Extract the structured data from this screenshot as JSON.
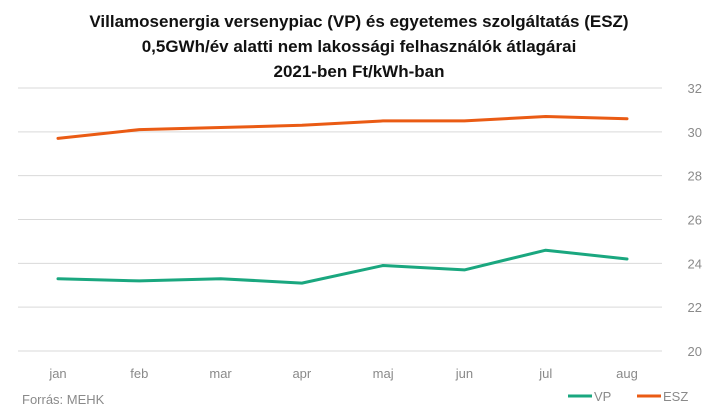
{
  "chart_data": {
    "type": "line",
    "title_lines": [
      "Villamosenergia versenypiac (VP) és egyetemes szolgáltatás (ESZ)",
      "0,5GWh/év alatti nem lakossági felhasználók átlagárai",
      "2021-ben Ft/kWh-ban"
    ],
    "categories": [
      "jan",
      "feb",
      "mar",
      "apr",
      "maj",
      "jun",
      "jul",
      "aug"
    ],
    "series": [
      {
        "name": "VP",
        "color": "#1aa77f",
        "values": [
          23.3,
          23.2,
          23.3,
          23.1,
          23.9,
          23.7,
          24.6,
          24.2
        ]
      },
      {
        "name": "ESZ",
        "color": "#ea5b14",
        "values": [
          29.7,
          30.1,
          30.2,
          30.3,
          30.5,
          30.5,
          30.7,
          30.6
        ]
      }
    ],
    "yticks": [
      "20",
      "22",
      "24",
      "26",
      "28",
      "30",
      "32"
    ],
    "ylim": [
      20,
      32
    ],
    "grid": true,
    "y_axis_side": "right",
    "legend_position": "bottom-right",
    "source": "Forrás: MEHK"
  }
}
